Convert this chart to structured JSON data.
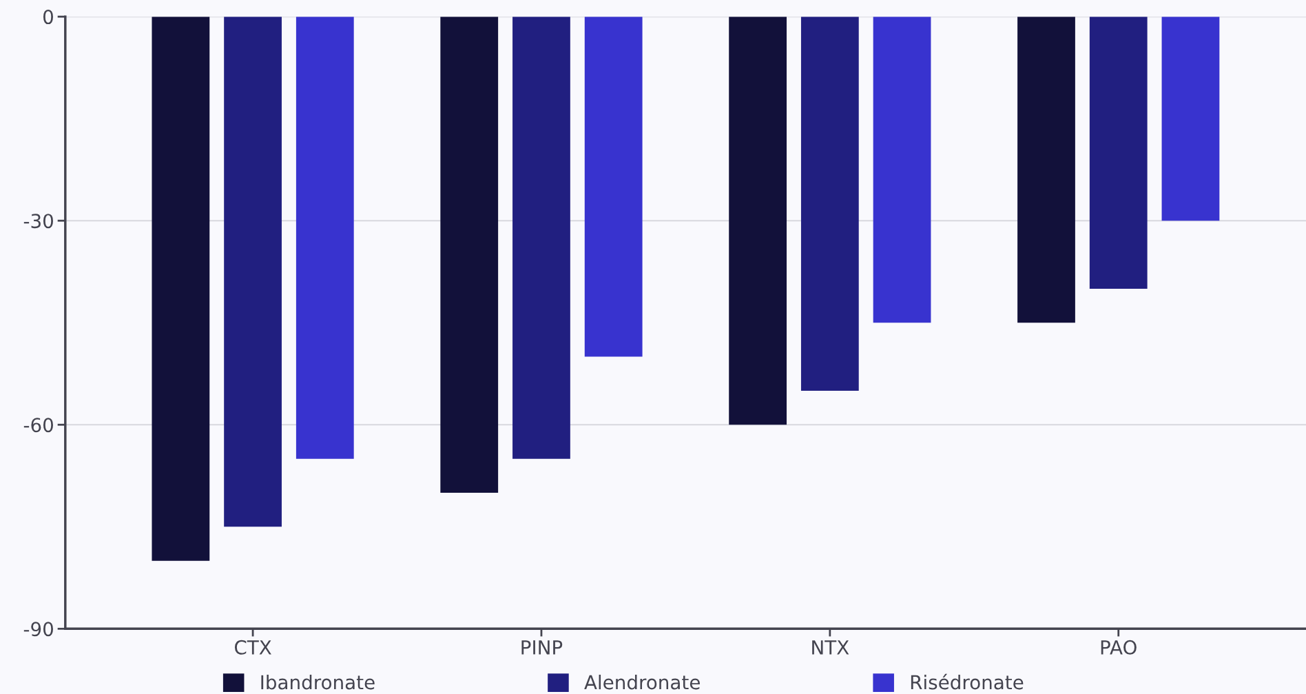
{
  "chart_data": {
    "type": "bar",
    "categories": [
      "CTX",
      "PINP",
      "NTX",
      "PAO"
    ],
    "series": [
      {
        "name": "Ibandronate",
        "color": "#12113a",
        "values": [
          -80,
          -70,
          -60,
          -45
        ]
      },
      {
        "name": "Alendronate",
        "color": "#211f80",
        "values": [
          -75,
          -65,
          -55,
          -40
        ]
      },
      {
        "name": "Risédronate",
        "color": "#3833cf",
        "values": [
          -65,
          -50,
          -45,
          -30
        ]
      }
    ],
    "ylim": [
      -90,
      0
    ],
    "yticks": [
      -90,
      -60,
      -30,
      0
    ],
    "grid": "y",
    "legend": "bottom"
  }
}
